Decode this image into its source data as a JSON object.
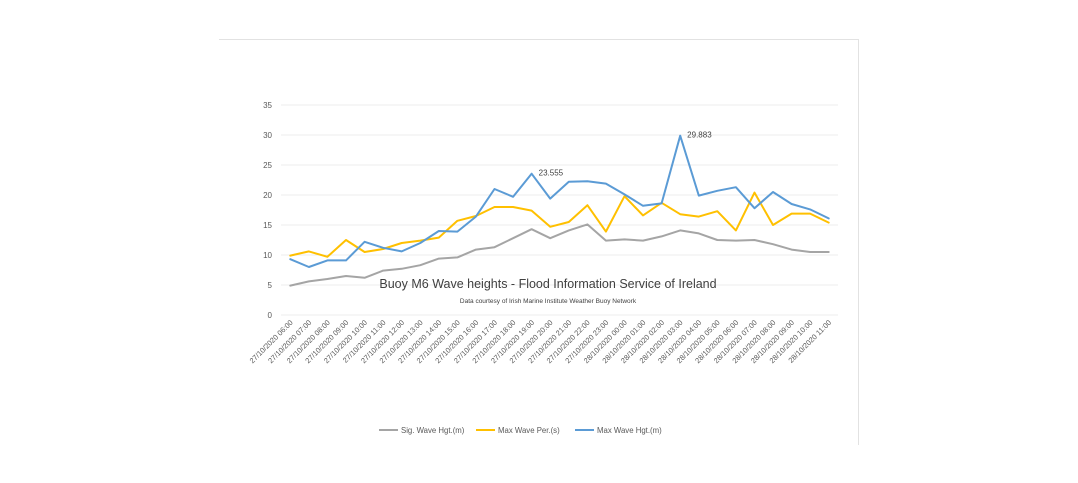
{
  "chart_data": {
    "type": "line",
    "title": "Buoy M6 Wave heights - Flood Information Service of Ireland",
    "subtitle": "Data courtesy of Irish Marine Institute Weather Buoy Network",
    "ylim": [
      0,
      35
    ],
    "yticks": [
      0,
      5,
      10,
      15,
      20,
      25,
      30,
      35
    ],
    "categories": [
      "27/10/2020 06:00",
      "27/10/2020 07:00",
      "27/10/2020 08:00",
      "27/10/2020 09:00",
      "27/10/2020 10:00",
      "27/10/2020 11:00",
      "27/10/2020 12:00",
      "27/10/2020 13:00",
      "27/10/2020 14:00",
      "27/10/2020 15:00",
      "27/10/2020 16:00",
      "27/10/2020 17:00",
      "27/10/2020 18:00",
      "27/10/2020 19:00",
      "27/10/2020 20:00",
      "27/10/2020 21:00",
      "27/10/2020 22:00",
      "27/10/2020 23:00",
      "28/10/2020 00:00",
      "28/10/2020 01:00",
      "28/10/2020 02:00",
      "28/10/2020 03:00",
      "28/10/2020 04:00",
      "28/10/2020 05:00",
      "28/10/2020 06:00",
      "28/10/2020 07:00",
      "28/10/2020 08:00",
      "28/10/2020 09:00",
      "28/10/2020 10:00",
      "28/10/2020 11:00"
    ],
    "series": [
      {
        "name": "Sig. Wave Hgt.(m)",
        "color": "#a5a5a5",
        "values": [
          4.9,
          5.6,
          6.0,
          6.5,
          6.2,
          7.4,
          7.7,
          8.3,
          9.4,
          9.6,
          10.9,
          11.3,
          12.8,
          14.3,
          12.8,
          14.1,
          15.1,
          12.4,
          12.6,
          12.4,
          13.1,
          14.1,
          13.6,
          12.5,
          12.4,
          12.5,
          11.8,
          10.9,
          10.5,
          10.5
        ]
      },
      {
        "name": "Max Wave Per.(s)",
        "color": "#ffc000",
        "values": [
          9.9,
          10.6,
          9.7,
          12.5,
          10.5,
          11.0,
          12.0,
          12.4,
          12.9,
          15.7,
          16.5,
          18.0,
          18.0,
          17.4,
          14.7,
          15.5,
          18.3,
          13.9,
          19.8,
          16.6,
          18.7,
          16.8,
          16.4,
          17.3,
          14.1,
          20.4,
          15.0,
          16.9,
          16.9,
          15.4
        ]
      },
      {
        "name": "Max Wave Hgt.(m)",
        "color": "#5b9bd5",
        "values": [
          9.3,
          8.0,
          9.1,
          9.1,
          12.2,
          11.2,
          10.6,
          12.0,
          14.0,
          13.9,
          16.4,
          21.0,
          19.7,
          23.555,
          19.4,
          22.2,
          22.3,
          21.9,
          20.1,
          18.2,
          18.6,
          29.883,
          19.9,
          20.7,
          21.3,
          17.8,
          20.5,
          18.5,
          17.6,
          16.1
        ]
      }
    ],
    "annotations": [
      {
        "label": "23.555",
        "category_index": 13,
        "series": 2
      },
      {
        "label": "29.883",
        "category_index": 21,
        "series": 2
      }
    ],
    "legend_position": "bottom"
  }
}
